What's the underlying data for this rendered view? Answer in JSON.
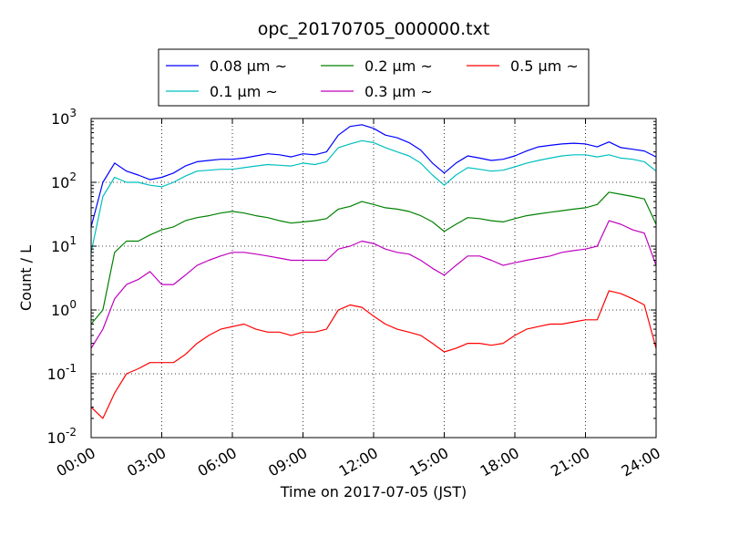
{
  "chart_data": {
    "type": "line",
    "title": "opc_20170705_000000.txt",
    "xlabel": "Time on 2017-07-05 (JST)",
    "ylabel": "Count / L",
    "yscale": "log",
    "ylim": [
      0.01,
      1000
    ],
    "xlim": [
      0,
      24
    ],
    "grid": true,
    "legend_position": "top",
    "x_tick_labels": [
      "00:00",
      "03:00",
      "06:00",
      "09:00",
      "12:00",
      "15:00",
      "18:00",
      "21:00",
      "24:00"
    ],
    "y_tick_labels": [
      {
        "base": "10",
        "exp": "-2"
      },
      {
        "base": "10",
        "exp": "-1"
      },
      {
        "base": "10",
        "exp": "0"
      },
      {
        "base": "10",
        "exp": "1"
      },
      {
        "base": "10",
        "exp": "2"
      },
      {
        "base": "10",
        "exp": "3"
      }
    ],
    "x_hours": [
      0,
      0.5,
      1,
      1.5,
      2,
      2.5,
      3,
      3.5,
      4,
      4.5,
      5,
      5.5,
      6,
      6.5,
      7,
      7.5,
      8,
      8.5,
      9,
      9.5,
      10,
      10.5,
      11,
      11.5,
      12,
      12.5,
      13,
      13.5,
      14,
      14.5,
      15,
      15.5,
      16,
      16.5,
      17,
      17.5,
      18,
      18.5,
      19,
      19.5,
      20,
      20.5,
      21,
      21.5,
      22,
      22.5,
      23,
      23.5,
      24
    ],
    "series": [
      {
        "name": "0.08 μm ~",
        "color": "#0000ff",
        "values": [
          20,
          100,
          200,
          150,
          130,
          110,
          120,
          140,
          180,
          210,
          220,
          230,
          230,
          240,
          260,
          280,
          270,
          250,
          280,
          270,
          300,
          550,
          750,
          800,
          700,
          550,
          500,
          420,
          320,
          200,
          140,
          200,
          260,
          240,
          220,
          230,
          260,
          310,
          360,
          380,
          400,
          410,
          400,
          360,
          430,
          350,
          330,
          310,
          250
        ]
      },
      {
        "name": "0.1 μm ~",
        "color": "#00bfbf",
        "values": [
          8,
          60,
          120,
          100,
          100,
          90,
          85,
          100,
          125,
          150,
          155,
          160,
          160,
          170,
          180,
          190,
          185,
          180,
          200,
          190,
          210,
          350,
          400,
          450,
          420,
          350,
          300,
          260,
          200,
          130,
          90,
          130,
          170,
          160,
          150,
          155,
          175,
          200,
          220,
          240,
          260,
          270,
          270,
          250,
          270,
          240,
          230,
          210,
          150
        ]
      },
      {
        "name": "0.2 μm ~",
        "color": "#008000",
        "values": [
          0.6,
          1,
          8,
          12,
          12,
          15,
          18,
          20,
          25,
          28,
          30,
          33,
          35,
          33,
          30,
          28,
          25,
          23,
          24,
          25,
          27,
          38,
          42,
          50,
          45,
          40,
          38,
          35,
          30,
          24,
          17,
          22,
          28,
          27,
          25,
          24,
          27,
          30,
          32,
          34,
          36,
          38,
          40,
          45,
          70,
          65,
          60,
          55,
          22
        ]
      },
      {
        "name": "0.3 μm ~",
        "color": "#bf00bf",
        "values": [
          0.25,
          0.5,
          1.5,
          2.5,
          3,
          4,
          2.5,
          2.5,
          3.5,
          5,
          6,
          7,
          8,
          8,
          7.5,
          7,
          6.5,
          6,
          6,
          6,
          6,
          9,
          10,
          12,
          11,
          9,
          8,
          7.5,
          6,
          4.5,
          3.5,
          5,
          7,
          7,
          6,
          5,
          5.5,
          6,
          6.5,
          7,
          8,
          8.5,
          9,
          10,
          25,
          22,
          18,
          16,
          5
        ]
      },
      {
        "name": "0.5 μm ~",
        "color": "#ff0000",
        "values": [
          0.03,
          0.02,
          0.05,
          0.1,
          0.12,
          0.15,
          0.15,
          0.15,
          0.2,
          0.3,
          0.4,
          0.5,
          0.55,
          0.6,
          0.5,
          0.45,
          0.45,
          0.4,
          0.45,
          0.45,
          0.5,
          1,
          1.2,
          1.1,
          0.8,
          0.6,
          0.5,
          0.45,
          0.4,
          0.3,
          0.22,
          0.25,
          0.3,
          0.3,
          0.28,
          0.3,
          0.4,
          0.5,
          0.55,
          0.6,
          0.6,
          0.65,
          0.7,
          0.7,
          2,
          1.8,
          1.5,
          1.2,
          0.25
        ]
      }
    ]
  }
}
